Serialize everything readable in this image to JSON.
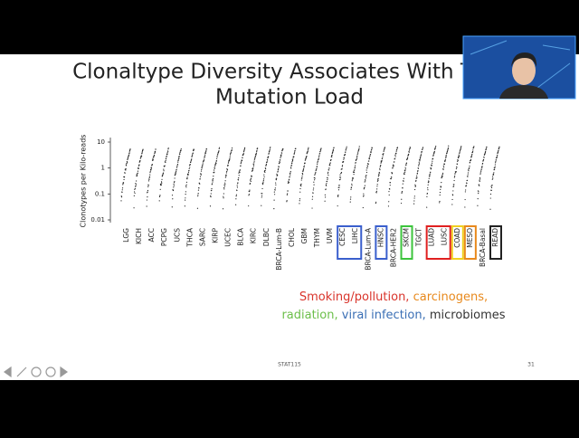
{
  "slide": {
    "title": [
      "Clonaltype Diversity Associates With Tumor",
      "Mutation Load"
    ],
    "plot": {
      "y_label": "Clonotypes per Kilo-reads",
      "log_scale": true,
      "ylim": [
        0.01,
        10
      ],
      "yticks": [
        10,
        1,
        0.1,
        0.01
      ],
      "categories": [
        "LGG",
        "KICH",
        "ACC",
        "PCPG",
        "UCS",
        "THCA",
        "SARC",
        "KIRP",
        "UCEC",
        "BLCA",
        "KIRC",
        "DLBC",
        "BRCA-Lum-B",
        "CHOL",
        "GBM",
        "THYM",
        "UVM",
        "CESC",
        "LIHC",
        "BRCA-Lum-A",
        "HNSC",
        "BRCA-HER2",
        "SKCM",
        "TGCT",
        "LUAD",
        "LUSC",
        "COAD",
        "MESO",
        "BRCA-Basal",
        "READ"
      ]
    },
    "caption": [
      [
        {
          "text": "Smoking/pollution,",
          "color": "#d9342b"
        },
        {
          "text": "carcinogens,",
          "color": "#e8891c"
        }
      ],
      [
        {
          "text": "radiation,",
          "color": "#6cbf4a"
        },
        {
          "text": "viral infection,",
          "color": "#3a6fb5"
        },
        {
          "text": "microbiomes",
          "color": "#333333"
        }
      ]
    ],
    "footer": "STAT115",
    "page_number": "31"
  }
}
